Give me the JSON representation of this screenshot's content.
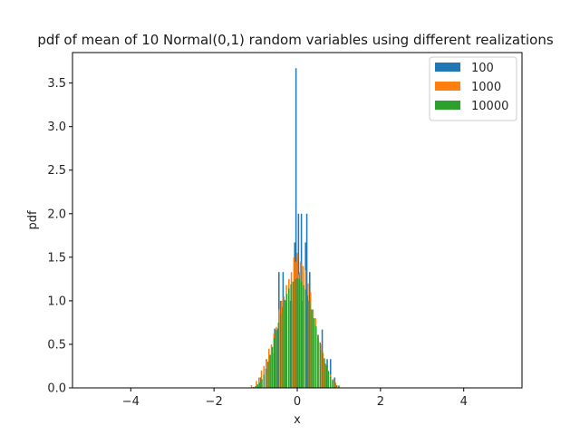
{
  "chart_data": {
    "type": "bar",
    "title": "pdf of mean of 10 Normal(0,1) random variables using different realizations",
    "xlabel": "x",
    "ylabel": "pdf",
    "xlim": [
      -5.4,
      5.4
    ],
    "ylim": [
      0,
      3.85
    ],
    "xticks": [
      -4,
      -2,
      0,
      2,
      4
    ],
    "xtick_labels": [
      "−4",
      "−2",
      "0",
      "2",
      "4"
    ],
    "yticks": [
      0.0,
      0.5,
      1.0,
      1.5,
      2.0,
      2.5,
      3.0,
      3.5
    ],
    "ytick_labels": [
      "0.0",
      "0.5",
      "1.0",
      "1.5",
      "2.0",
      "2.5",
      "3.0",
      "3.5"
    ],
    "grid": false,
    "legend_position": "top-right",
    "bin_width": 0.0333,
    "series": [
      {
        "name": "100",
        "color": "#1f77b4",
        "bins": [
          {
            "x": -0.88,
            "y": 0.12
          },
          {
            "x": -0.8,
            "y": 0.25
          },
          {
            "x": -0.74,
            "y": 0.33
          },
          {
            "x": -0.6,
            "y": 0.4
          },
          {
            "x": -0.54,
            "y": 0.68
          },
          {
            "x": -0.48,
            "y": 0.68
          },
          {
            "x": -0.44,
            "y": 1.33
          },
          {
            "x": -0.4,
            "y": 1.0
          },
          {
            "x": -0.34,
            "y": 1.33
          },
          {
            "x": -0.28,
            "y": 1.0
          },
          {
            "x": -0.16,
            "y": 1.0
          },
          {
            "x": -0.1,
            "y": 1.0
          },
          {
            "x": -0.06,
            "y": 1.67
          },
          {
            "x": -0.03,
            "y": 3.67
          },
          {
            "x": 0.0,
            "y": 1.5
          },
          {
            "x": 0.03,
            "y": 2.0
          },
          {
            "x": 0.07,
            "y": 1.33
          },
          {
            "x": 0.1,
            "y": 2.0
          },
          {
            "x": 0.13,
            "y": 1.0
          },
          {
            "x": 0.2,
            "y": 1.67
          },
          {
            "x": 0.23,
            "y": 2.0
          },
          {
            "x": 0.27,
            "y": 1.0
          },
          {
            "x": 0.3,
            "y": 1.33
          },
          {
            "x": 0.33,
            "y": 0.67
          },
          {
            "x": 0.45,
            "y": 0.67
          },
          {
            "x": 0.5,
            "y": 0.57
          },
          {
            "x": 0.55,
            "y": 0.33
          },
          {
            "x": 0.6,
            "y": 0.67
          },
          {
            "x": 0.72,
            "y": 0.33
          },
          {
            "x": 0.8,
            "y": 0.33
          },
          {
            "x": 0.9,
            "y": 0.12
          }
        ]
      },
      {
        "name": "1000",
        "color": "#ff7f0e",
        "bins": [
          {
            "x": -1.1,
            "y": 0.03
          },
          {
            "x": -0.98,
            "y": 0.08
          },
          {
            "x": -0.92,
            "y": 0.12
          },
          {
            "x": -0.86,
            "y": 0.2
          },
          {
            "x": -0.8,
            "y": 0.25
          },
          {
            "x": -0.74,
            "y": 0.33
          },
          {
            "x": -0.68,
            "y": 0.45
          },
          {
            "x": -0.62,
            "y": 0.5
          },
          {
            "x": -0.56,
            "y": 0.62
          },
          {
            "x": -0.5,
            "y": 0.7
          },
          {
            "x": -0.44,
            "y": 0.9
          },
          {
            "x": -0.38,
            "y": 1.0
          },
          {
            "x": -0.32,
            "y": 1.05
          },
          {
            "x": -0.26,
            "y": 1.18
          },
          {
            "x": -0.2,
            "y": 1.25
          },
          {
            "x": -0.14,
            "y": 1.33
          },
          {
            "x": -0.08,
            "y": 1.5
          },
          {
            "x": -0.04,
            "y": 1.45
          },
          {
            "x": 0.0,
            "y": 1.55
          },
          {
            "x": 0.04,
            "y": 1.3
          },
          {
            "x": 0.08,
            "y": 1.45
          },
          {
            "x": 0.14,
            "y": 1.4
          },
          {
            "x": 0.2,
            "y": 1.35
          },
          {
            "x": 0.26,
            "y": 1.2
          },
          {
            "x": 0.32,
            "y": 1.1
          },
          {
            "x": 0.38,
            "y": 0.9
          },
          {
            "x": 0.44,
            "y": 0.8
          },
          {
            "x": 0.5,
            "y": 0.6
          },
          {
            "x": 0.56,
            "y": 0.5
          },
          {
            "x": 0.62,
            "y": 0.4
          },
          {
            "x": 0.68,
            "y": 0.28
          },
          {
            "x": 0.74,
            "y": 0.2
          },
          {
            "x": 0.8,
            "y": 0.15
          },
          {
            "x": 0.86,
            "y": 0.1
          },
          {
            "x": 0.92,
            "y": 0.06
          },
          {
            "x": 1.0,
            "y": 0.03
          }
        ]
      },
      {
        "name": "10000",
        "color": "#2ca02c",
        "bins": [
          {
            "x": -1.05,
            "y": 0.01
          },
          {
            "x": -1.0,
            "y": 0.02
          },
          {
            "x": -0.95,
            "y": 0.04
          },
          {
            "x": -0.9,
            "y": 0.06
          },
          {
            "x": -0.85,
            "y": 0.1
          },
          {
            "x": -0.8,
            "y": 0.15
          },
          {
            "x": -0.75,
            "y": 0.22
          },
          {
            "x": -0.7,
            "y": 0.3
          },
          {
            "x": -0.65,
            "y": 0.38
          },
          {
            "x": -0.6,
            "y": 0.47
          },
          {
            "x": -0.55,
            "y": 0.57
          },
          {
            "x": -0.5,
            "y": 0.66
          },
          {
            "x": -0.45,
            "y": 0.75
          },
          {
            "x": -0.4,
            "y": 0.85
          },
          {
            "x": -0.35,
            "y": 0.93
          },
          {
            "x": -0.3,
            "y": 1.01
          },
          {
            "x": -0.25,
            "y": 1.08
          },
          {
            "x": -0.2,
            "y": 1.14
          },
          {
            "x": -0.15,
            "y": 1.19
          },
          {
            "x": -0.1,
            "y": 1.22
          },
          {
            "x": -0.05,
            "y": 1.25
          },
          {
            "x": 0.0,
            "y": 1.26
          },
          {
            "x": 0.05,
            "y": 1.25
          },
          {
            "x": 0.1,
            "y": 1.22
          },
          {
            "x": 0.15,
            "y": 1.18
          },
          {
            "x": 0.2,
            "y": 1.13
          },
          {
            "x": 0.25,
            "y": 1.06
          },
          {
            "x": 0.3,
            "y": 0.98
          },
          {
            "x": 0.35,
            "y": 0.9
          },
          {
            "x": 0.4,
            "y": 0.8
          },
          {
            "x": 0.45,
            "y": 0.71
          },
          {
            "x": 0.5,
            "y": 0.61
          },
          {
            "x": 0.55,
            "y": 0.52
          },
          {
            "x": 0.6,
            "y": 0.43
          },
          {
            "x": 0.65,
            "y": 0.34
          },
          {
            "x": 0.7,
            "y": 0.26
          },
          {
            "x": 0.75,
            "y": 0.19
          },
          {
            "x": 0.8,
            "y": 0.13
          },
          {
            "x": 0.85,
            "y": 0.09
          },
          {
            "x": 0.9,
            "y": 0.06
          },
          {
            "x": 0.95,
            "y": 0.03
          },
          {
            "x": 1.0,
            "y": 0.02
          }
        ]
      }
    ]
  }
}
